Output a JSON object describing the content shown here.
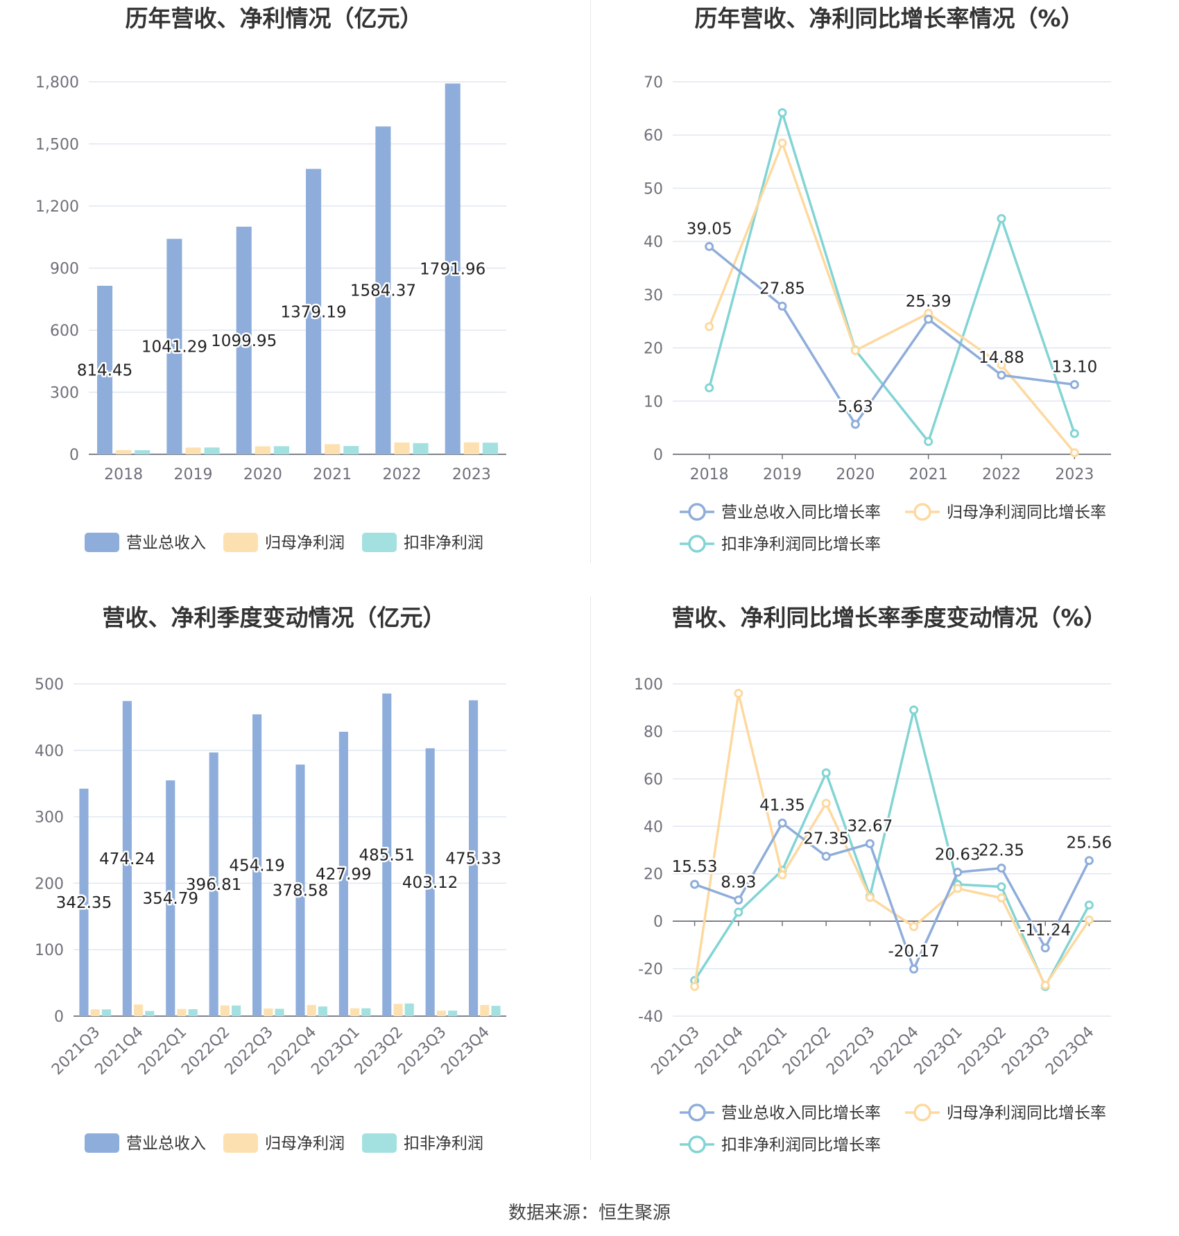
{
  "colors": {
    "revenue": "#8eadda",
    "net_profit": "#fde0b0",
    "deducted_profit": "#a3e0e0",
    "revenue_line": "#8eadda",
    "net_profit_line": "#fdd99f",
    "deducted_profit_line": "#82d4d4",
    "grid": "#e0e6f1",
    "axis": "#6e7079"
  },
  "source_text": "数据来源：恒生聚源",
  "chart_data": [
    {
      "id": "annual-amount",
      "type": "bar",
      "title": "历年营收、净利情况（亿元）",
      "categories": [
        "2018",
        "2019",
        "2020",
        "2021",
        "2022",
        "2023"
      ],
      "ylim": [
        0,
        1800
      ],
      "yticks": [
        0,
        300,
        600,
        900,
        1200,
        1500,
        1800
      ],
      "ytick_labels": [
        "0",
        "300",
        "600",
        "900",
        "1,200",
        "1,500",
        "1,800"
      ],
      "series": [
        {
          "name": "营业总收入",
          "values": [
            814.45,
            1041.29,
            1099.95,
            1379.19,
            1584.37,
            1791.96
          ],
          "labels": [
            "814.45",
            "1041.29",
            "1099.95",
            "1379.19",
            "1584.37",
            "1791.96"
          ]
        },
        {
          "name": "归母净利润",
          "values": [
            20.5,
            32.4,
            38.7,
            49.0,
            57.2,
            57.4
          ]
        },
        {
          "name": "扣非净利润",
          "values": [
            20.0,
            32.9,
            39.3,
            40.2,
            54.2,
            56.4
          ]
        }
      ]
    },
    {
      "id": "annual-growth",
      "type": "line",
      "title": "历年营收、净利同比增长率情况（%）",
      "categories": [
        "2018",
        "2019",
        "2020",
        "2021",
        "2022",
        "2023"
      ],
      "ylim": [
        0,
        70
      ],
      "yticks": [
        0,
        10,
        20,
        30,
        40,
        50,
        60,
        70
      ],
      "ytick_labels": [
        "0",
        "10",
        "20",
        "30",
        "40",
        "50",
        "60",
        "70"
      ],
      "series": [
        {
          "name": "营业总收入同比增长率",
          "values": [
            39.05,
            27.85,
            5.63,
            25.39,
            14.88,
            13.1
          ],
          "labels": [
            "39.05",
            "27.85",
            "5.63",
            "25.39",
            "14.88",
            "13.10"
          ]
        },
        {
          "name": "归母净利润同比增长率",
          "values": [
            24.0,
            58.5,
            19.5,
            26.5,
            16.8,
            0.3
          ]
        },
        {
          "name": "扣非净利润同比增长率",
          "values": [
            12.5,
            64.2,
            19.6,
            2.4,
            44.3,
            3.9
          ]
        }
      ]
    },
    {
      "id": "quarterly-amount",
      "type": "bar",
      "title": "营收、净利季度变动情况（亿元）",
      "categories": [
        "2021Q3",
        "2021Q4",
        "2022Q1",
        "2022Q2",
        "2022Q3",
        "2022Q4",
        "2023Q1",
        "2023Q2",
        "2023Q3",
        "2023Q4"
      ],
      "ylim": [
        0,
        500
      ],
      "yticks": [
        0,
        100,
        200,
        300,
        400,
        500
      ],
      "ytick_labels": [
        "0",
        "100",
        "200",
        "300",
        "400",
        "500"
      ],
      "series": [
        {
          "name": "营业总收入",
          "values": [
            342.35,
            474.24,
            354.79,
            396.81,
            454.19,
            378.58,
            427.99,
            485.51,
            403.12,
            475.33
          ],
          "labels": [
            "342.35",
            "474.24",
            "354.79",
            "396.81",
            "454.19",
            "378.58",
            "427.99",
            "485.51",
            "403.12",
            "475.33"
          ]
        },
        {
          "name": "归母净利润",
          "values": [
            10.2,
            17.5,
            10.8,
            16.2,
            11.5,
            16.8,
            11.8,
            18.5,
            8.2,
            16.7
          ]
        },
        {
          "name": "扣非净利润",
          "values": [
            10.1,
            7.8,
            10.4,
            16.0,
            11.0,
            14.5,
            11.8,
            19.0,
            8.3,
            15.5
          ]
        }
      ]
    },
    {
      "id": "quarterly-growth",
      "type": "line",
      "title": "营收、净利同比增长率季度变动情况（%）",
      "categories": [
        "2021Q3",
        "2021Q4",
        "2022Q1",
        "2022Q2",
        "2022Q3",
        "2022Q4",
        "2023Q1",
        "2023Q2",
        "2023Q3",
        "2023Q4"
      ],
      "ylim": [
        -40,
        100
      ],
      "yticks": [
        -40,
        -20,
        0,
        20,
        40,
        60,
        80,
        100
      ],
      "ytick_labels": [
        "-40",
        "-20",
        "0",
        "20",
        "40",
        "60",
        "80",
        "100"
      ],
      "series": [
        {
          "name": "营业总收入同比增长率",
          "values": [
            15.53,
            8.93,
            41.35,
            27.35,
            32.67,
            -20.17,
            20.63,
            22.35,
            -11.24,
            25.56
          ],
          "labels": [
            "15.53",
            "8.93",
            "41.35",
            "27.35",
            "32.67",
            "-20.17",
            "20.63",
            "22.35",
            "-11.24",
            "25.56"
          ]
        },
        {
          "name": "归母净利润同比增长率",
          "values": [
            -27.5,
            96.0,
            19.5,
            49.7,
            10.0,
            -2.3,
            13.8,
            9.8,
            -27.0,
            0.5
          ]
        },
        {
          "name": "扣非净利润同比增长率",
          "values": [
            -25.0,
            3.8,
            21.5,
            62.5,
            10.5,
            89.0,
            15.5,
            14.5,
            -27.5,
            6.8
          ]
        }
      ]
    }
  ]
}
